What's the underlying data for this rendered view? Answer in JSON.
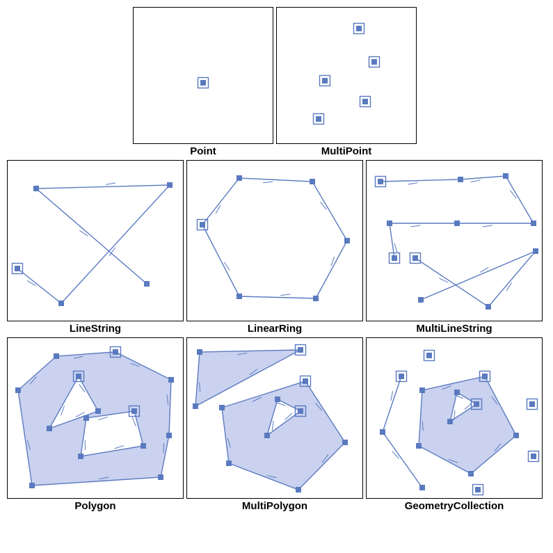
{
  "colors": {
    "stroke": "#5a7ac0",
    "vertex_fill": "#5a7ac0",
    "vertex_stroke": "#5a7ac0",
    "highlight_stroke": "#5a7ac0",
    "highlight_fill": "none",
    "poly_fill": "#c4cded",
    "poly_fill_opacity": 0.9,
    "panel_border": "#000000"
  },
  "sizing": {
    "row1_w": 200,
    "row1_h": 195,
    "row23_w": 252,
    "row23_h": 230,
    "vertex_size": 7,
    "highlight_size": 15,
    "line_width": 1.4,
    "tick_len": 14
  },
  "panels": {
    "point": {
      "label": "Point",
      "points": [
        [
          100,
          108
        ]
      ],
      "highlights": [
        [
          100,
          108
        ]
      ]
    },
    "multipoint": {
      "label": "MultiPoint",
      "points": [
        [
          69,
          105
        ],
        [
          60,
          160
        ],
        [
          118,
          30
        ],
        [
          127,
          135
        ],
        [
          140,
          78
        ]
      ],
      "highlights": [
        [
          69,
          105
        ],
        [
          60,
          160
        ],
        [
          118,
          30
        ],
        [
          127,
          135
        ],
        [
          140,
          78
        ]
      ]
    },
    "linestring": {
      "label": "LineString",
      "lines": [
        {
          "pts": [
            [
              14,
              155
            ],
            [
              77,
              205
            ],
            [
              233,
              35
            ],
            [
              41,
              40
            ],
            [
              200,
              177
            ]
          ],
          "ticks": true
        }
      ],
      "highlights": [
        [
          14,
          155
        ]
      ]
    },
    "linearring": {
      "label": "LinearRing",
      "lines": [
        {
          "pts": [
            [
              22,
              92
            ],
            [
              75,
              25
            ],
            [
              180,
              30
            ],
            [
              230,
              115
            ],
            [
              185,
              198
            ],
            [
              75,
              195
            ],
            [
              22,
              92
            ]
          ],
          "ticks": true
        }
      ],
      "highlights": [
        [
          22,
          92
        ]
      ]
    },
    "multilinestring": {
      "label": "MultiLineString",
      "lines": [
        {
          "pts": [
            [
              20,
              30
            ],
            [
              135,
              27
            ],
            [
              200,
              22
            ],
            [
              240,
              90
            ]
          ],
          "ticks": true
        },
        {
          "pts": [
            [
              40,
              140
            ],
            [
              33,
              90
            ],
            [
              130,
              90
            ],
            [
              240,
              90
            ]
          ],
          "ticks": true
        },
        {
          "pts": [
            [
              70,
              140
            ],
            [
              175,
              210
            ],
            [
              243,
              130
            ],
            [
              78,
              200
            ]
          ],
          "ticks": true
        }
      ],
      "highlights": [
        [
          20,
          30
        ],
        [
          40,
          140
        ],
        [
          70,
          140
        ]
      ]
    },
    "polygon": {
      "label": "Polygon",
      "polygons": [
        {
          "outer": [
            [
              15,
              75
            ],
            [
              70,
              26
            ],
            [
              155,
              20
            ],
            [
              235,
              60
            ],
            [
              232,
              140
            ],
            [
              220,
              200
            ],
            [
              35,
              212
            ],
            [
              15,
              75
            ]
          ],
          "holes": [
            [
              [
                60,
                130
              ],
              [
                102,
                55
              ],
              [
                130,
                105
              ],
              [
                60,
                130
              ]
            ],
            [
              [
                105,
                170
              ],
              [
                113,
                115
              ],
              [
                182,
                105
              ],
              [
                195,
                155
              ],
              [
                105,
                170
              ]
            ]
          ],
          "ticks": true
        }
      ],
      "highlights": [
        [
          155,
          20
        ],
        [
          102,
          55
        ],
        [
          182,
          105
        ]
      ]
    },
    "multipolygon": {
      "label": "MultiPolygon",
      "polygons": [
        {
          "outer": [
            [
              12,
              98
            ],
            [
              18,
              20
            ],
            [
              163,
              17
            ],
            [
              12,
              98
            ]
          ],
          "holes": [],
          "ticks": true
        },
        {
          "outer": [
            [
              50,
              100
            ],
            [
              170,
              62
            ],
            [
              227,
              150
            ],
            [
              160,
              218
            ],
            [
              60,
              180
            ],
            [
              50,
              100
            ]
          ],
          "holes": [
            [
              [
                115,
                140
              ],
              [
                130,
                88
              ],
              [
                163,
                105
              ],
              [
                115,
                140
              ]
            ]
          ],
          "ticks": true
        }
      ],
      "highlights": [
        [
          163,
          17
        ],
        [
          170,
          62
        ],
        [
          163,
          105
        ]
      ]
    },
    "geometrycollection": {
      "label": "GeometryCollection",
      "polygons": [
        {
          "outer": [
            [
              80,
              75
            ],
            [
              170,
              55
            ],
            [
              215,
              140
            ],
            [
              150,
              195
            ],
            [
              75,
              155
            ],
            [
              80,
              75
            ]
          ],
          "holes": [
            [
              [
                120,
                120
              ],
              [
                130,
                78
              ],
              [
                158,
                95
              ],
              [
                120,
                120
              ]
            ]
          ],
          "ticks": true
        }
      ],
      "lines": [
        {
          "pts": [
            [
              50,
              55
            ],
            [
              23,
              135
            ],
            [
              80,
              215
            ]
          ],
          "ticks": true
        }
      ],
      "points": [
        [
          90,
          25
        ],
        [
          238,
          95
        ],
        [
          240,
          170
        ],
        [
          160,
          218
        ]
      ],
      "highlights": [
        [
          50,
          55
        ],
        [
          170,
          55
        ],
        [
          158,
          95
        ],
        [
          90,
          25
        ],
        [
          238,
          95
        ],
        [
          240,
          170
        ],
        [
          160,
          218
        ]
      ]
    }
  }
}
